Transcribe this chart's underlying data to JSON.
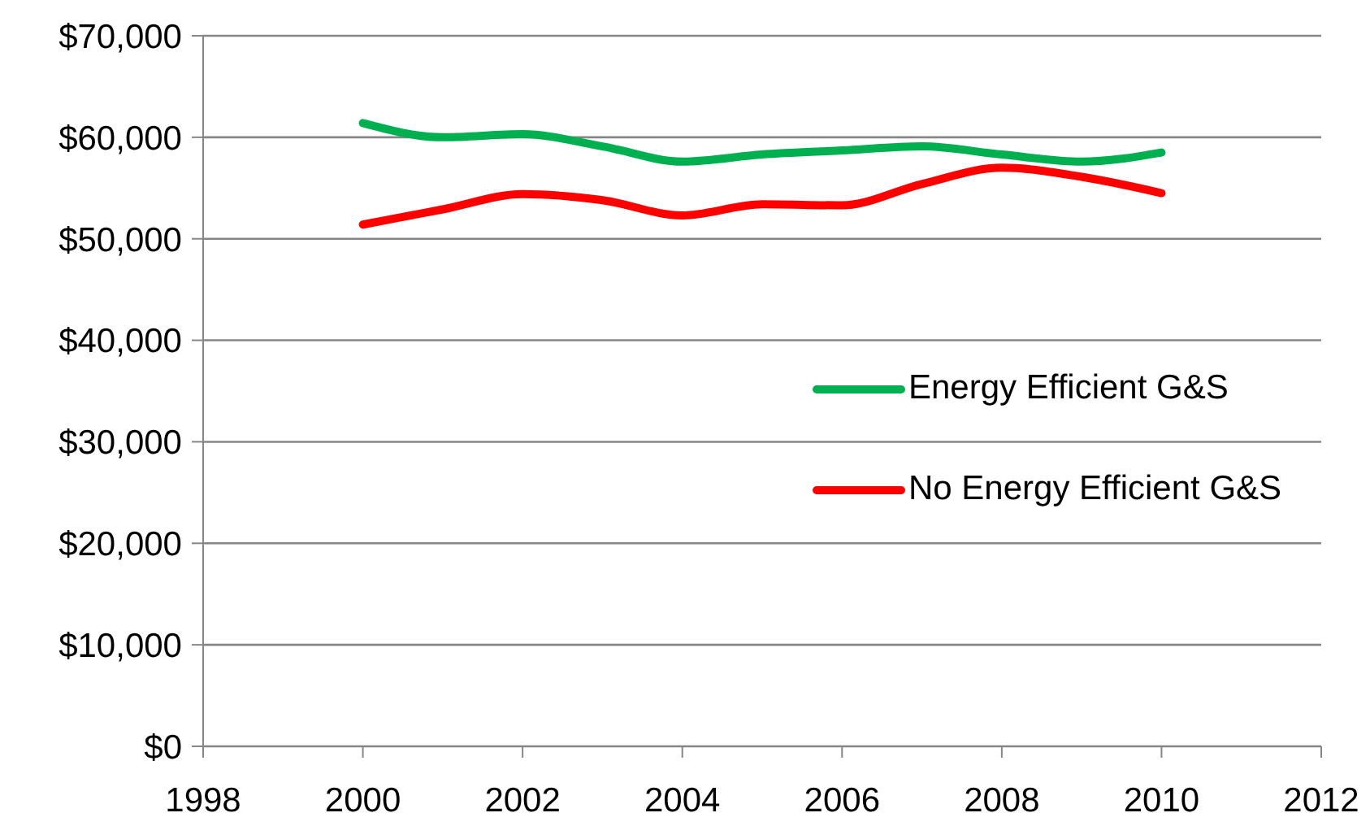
{
  "chart_data": {
    "type": "line",
    "x": [
      2000,
      2001,
      2002,
      2003,
      2004,
      2005,
      2006,
      2007,
      2008,
      2009,
      2010
    ],
    "series": [
      {
        "name": "Energy Efficient G&S",
        "color": "#00b050",
        "values": [
          61400,
          60000,
          60300,
          59100,
          57600,
          58300,
          58700,
          59100,
          58300,
          57600,
          58500
        ]
      },
      {
        "name": "No Energy Efficient G&S",
        "color": "#ff0000",
        "values": [
          51400,
          52900,
          54400,
          53800,
          52300,
          53400,
          53300,
          55400,
          57000,
          56100,
          54500
        ]
      }
    ],
    "xlim": [
      1998,
      2012
    ],
    "xticks": [
      1998,
      2000,
      2002,
      2004,
      2006,
      2008,
      2010,
      2012
    ],
    "ylim": [
      0,
      70000
    ],
    "yticks": [
      {
        "value": 0,
        "label": "$0"
      },
      {
        "value": 10000,
        "label": "$10,000"
      },
      {
        "value": 20000,
        "label": "$20,000"
      },
      {
        "value": 30000,
        "label": "$30,000"
      },
      {
        "value": 40000,
        "label": "$40,000"
      },
      {
        "value": 50000,
        "label": "$50,000"
      },
      {
        "value": 60000,
        "label": "$60,000"
      },
      {
        "value": 70000,
        "label": "$70,000"
      }
    ],
    "grid": "y",
    "legend": "right",
    "marker": "none",
    "line_style": "solid"
  }
}
